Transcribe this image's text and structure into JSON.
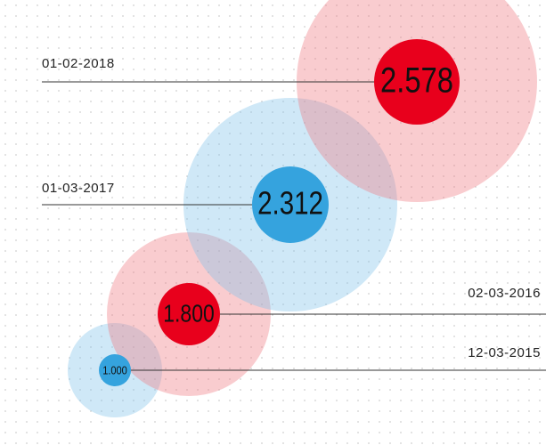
{
  "items": [
    {
      "date": "01-02-2018",
      "value": "2.578"
    },
    {
      "date": "01-03-2017",
      "value": "2.312"
    },
    {
      "date": "02-03-2016",
      "value": "1.800"
    },
    {
      "date": "12-03-2015",
      "value": "1.000"
    }
  ]
}
